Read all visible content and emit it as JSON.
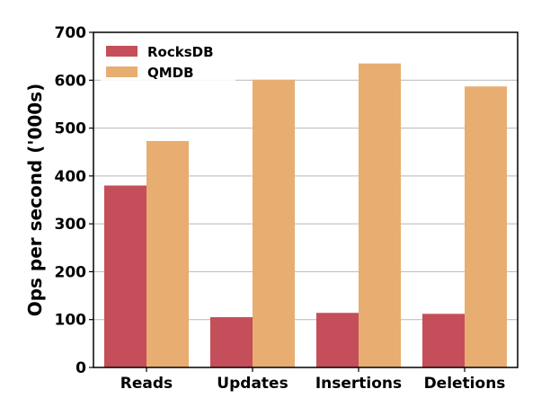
{
  "chart_data": {
    "type": "bar",
    "categories": [
      "Reads",
      "Updates",
      "Insertions",
      "Deletions"
    ],
    "series": [
      {
        "name": "RocksDB",
        "color": "#c44e5a",
        "values": [
          380,
          105,
          114,
          112
        ]
      },
      {
        "name": "QMDB",
        "color": "#e8ad70",
        "values": [
          473,
          601,
          635,
          587
        ]
      }
    ],
    "ylabel": "Ops per second ('000s)",
    "xlabel": "",
    "ylim": [
      0,
      700
    ],
    "yticks": [
      0,
      100,
      200,
      300,
      400,
      500,
      600,
      700
    ],
    "grid": "horizontal",
    "legend": "top-left"
  }
}
